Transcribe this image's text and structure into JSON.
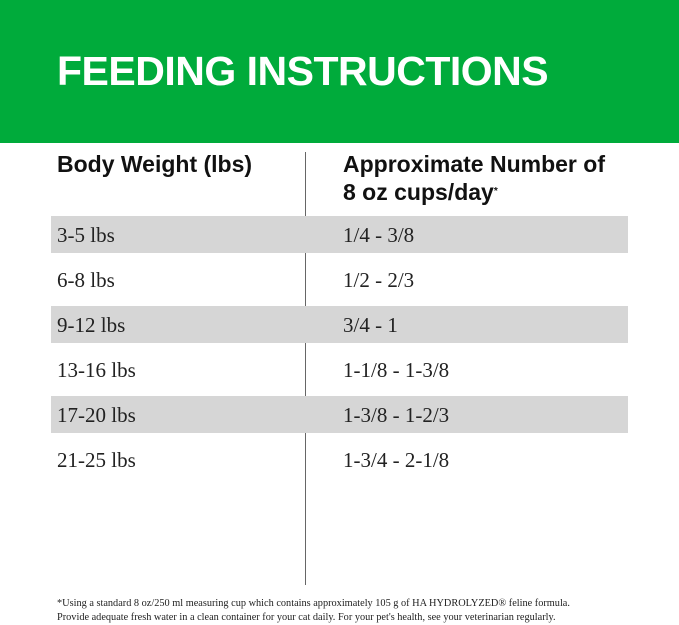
{
  "title": "FEEDING INSTRUCTIONS",
  "colors": {
    "header_band": "#00ab3b",
    "shaded_row": "#d6d6d6"
  },
  "table": {
    "headers": [
      "Body Weight (lbs)",
      "Approximate Number of 8 oz cups/day"
    ],
    "header_footnote_mark": "*",
    "rows": [
      [
        "3-5 lbs",
        "1/4 - 3/8"
      ],
      [
        "6-8 lbs",
        "1/2 - 2/3"
      ],
      [
        "9-12 lbs",
        "3/4 - 1"
      ],
      [
        "13-16 lbs",
        "1-1/8 - 1-3/8"
      ],
      [
        "17-20 lbs",
        "1-3/8 - 1-2/3"
      ],
      [
        "21-25 lbs",
        "1-3/4 - 2-1/8"
      ]
    ]
  },
  "footnote": [
    "*Using a standard 8 oz/250 ml measuring cup which contains approximately 105 g of HA HYDROLYZED® feline formula.",
    "Provide adequate fresh water in a clean container for your cat daily. For your pet's health, see your veterinarian regularly."
  ]
}
